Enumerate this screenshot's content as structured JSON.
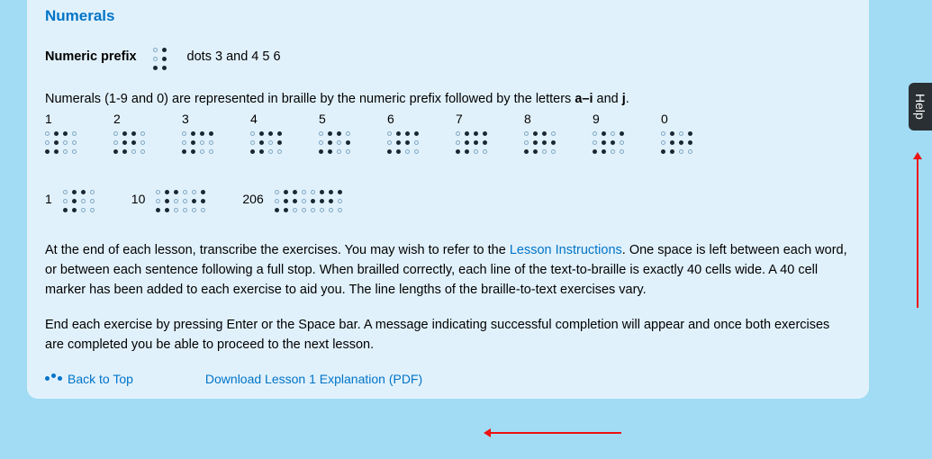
{
  "title": "Numerals",
  "prefix": {
    "label": "Numeric prefix",
    "description": "dots 3 and 4 5 6",
    "cell": [
      3,
      4,
      5,
      6
    ]
  },
  "intro": {
    "before_bold": "Numerals (1-9 and 0) are represented in braille by the numeric prefix followed by the letters ",
    "bold_range": "a–i",
    "mid": " and ",
    "bold_j": "j",
    "after": "."
  },
  "numerals": [
    {
      "label": "1",
      "cells": [
        [
          3,
          4,
          5,
          6
        ],
        [
          1
        ]
      ]
    },
    {
      "label": "2",
      "cells": [
        [
          3,
          4,
          5,
          6
        ],
        [
          1,
          2
        ]
      ]
    },
    {
      "label": "3",
      "cells": [
        [
          3,
          4,
          5,
          6
        ],
        [
          1,
          4
        ]
      ]
    },
    {
      "label": "4",
      "cells": [
        [
          3,
          4,
          5,
          6
        ],
        [
          1,
          4,
          5
        ]
      ]
    },
    {
      "label": "5",
      "cells": [
        [
          3,
          4,
          5,
          6
        ],
        [
          1,
          5
        ]
      ]
    },
    {
      "label": "6",
      "cells": [
        [
          3,
          4,
          5,
          6
        ],
        [
          1,
          2,
          4
        ]
      ]
    },
    {
      "label": "7",
      "cells": [
        [
          3,
          4,
          5,
          6
        ],
        [
          1,
          2,
          4,
          5
        ]
      ]
    },
    {
      "label": "8",
      "cells": [
        [
          3,
          4,
          5,
          6
        ],
        [
          1,
          2,
          5
        ]
      ]
    },
    {
      "label": "9",
      "cells": [
        [
          3,
          4,
          5,
          6
        ],
        [
          2,
          4
        ]
      ]
    },
    {
      "label": "0",
      "cells": [
        [
          3,
          4,
          5,
          6
        ],
        [
          2,
          4,
          5
        ]
      ]
    }
  ],
  "examples": [
    {
      "label": "1",
      "cells": [
        [
          3,
          4,
          5,
          6
        ],
        [
          1
        ]
      ]
    },
    {
      "label": "10",
      "cells": [
        [
          3,
          4,
          5,
          6
        ],
        [
          1
        ],
        [
          2,
          4,
          5
        ]
      ]
    },
    {
      "label": "206",
      "cells": [
        [
          3,
          4,
          5,
          6
        ],
        [
          1,
          2
        ],
        [
          2,
          4,
          5
        ],
        [
          1,
          2,
          4
        ]
      ]
    }
  ],
  "para1_before_link": "At the end of each lesson, transcribe the exercises. You may wish to refer to the ",
  "para1_link": "Lesson Instructions",
  "para1_after_link": ". One space is left between each word, or between each sentence following a full stop. When brailled correctly, each line of the text-to-braille is exactly 40 cells wide. A 40 cell marker has been added to each exercise to aid you. The line lengths of the braille-to-text exercises vary.",
  "para2": "End each exercise by pressing Enter or the Space bar. A message indicating successful completion will appear and once both exercises are completed you be able to proceed to the next lesson.",
  "footer": {
    "back_to_top": "Back to Top",
    "download": "Download Lesson 1 Explanation (PDF)"
  },
  "help_tab": "Help",
  "colors": {
    "page_bg": "#a1dcf4",
    "panel_bg": "#e1f1fb",
    "accent": "#0074c8",
    "text": "#1a2733",
    "arrow": "#e11"
  }
}
